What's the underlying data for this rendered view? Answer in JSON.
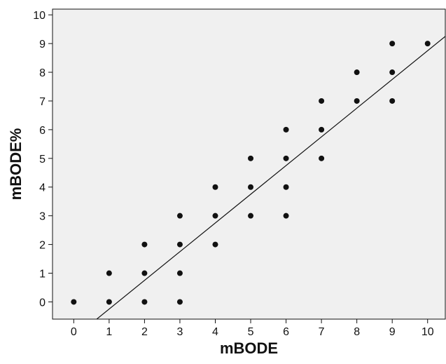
{
  "chart_data": {
    "type": "scatter",
    "title": "",
    "xlabel": "mBODE",
    "ylabel": "mBODE%",
    "xlim": [
      -0.6,
      10.5
    ],
    "ylim": [
      -0.6,
      10.2
    ],
    "xticks": [
      0,
      1,
      2,
      3,
      4,
      5,
      6,
      7,
      8,
      9,
      10
    ],
    "yticks": [
      0,
      1,
      2,
      3,
      4,
      5,
      6,
      7,
      8,
      9,
      10
    ],
    "grid": false,
    "legend": "none",
    "plot_background": "#f0f0f0",
    "point_color": "#111111",
    "points": [
      {
        "x": 0,
        "y": 0
      },
      {
        "x": 1,
        "y": 0
      },
      {
        "x": 1,
        "y": 1
      },
      {
        "x": 2,
        "y": 0
      },
      {
        "x": 2,
        "y": 1
      },
      {
        "x": 2,
        "y": 2
      },
      {
        "x": 3,
        "y": 0
      },
      {
        "x": 3,
        "y": 1
      },
      {
        "x": 3,
        "y": 2
      },
      {
        "x": 3,
        "y": 3
      },
      {
        "x": 4,
        "y": 2
      },
      {
        "x": 4,
        "y": 3
      },
      {
        "x": 4,
        "y": 4
      },
      {
        "x": 5,
        "y": 3
      },
      {
        "x": 5,
        "y": 4
      },
      {
        "x": 5,
        "y": 5
      },
      {
        "x": 6,
        "y": 3
      },
      {
        "x": 6,
        "y": 4
      },
      {
        "x": 6,
        "y": 5
      },
      {
        "x": 6,
        "y": 6
      },
      {
        "x": 7,
        "y": 5
      },
      {
        "x": 7,
        "y": 6
      },
      {
        "x": 7,
        "y": 7
      },
      {
        "x": 8,
        "y": 7
      },
      {
        "x": 8,
        "y": 8
      },
      {
        "x": 9,
        "y": 7
      },
      {
        "x": 9,
        "y": 8
      },
      {
        "x": 9,
        "y": 9
      },
      {
        "x": 10,
        "y": 9
      }
    ],
    "fit_line": {
      "slope": 1.0,
      "intercept": -1.25
    }
  }
}
